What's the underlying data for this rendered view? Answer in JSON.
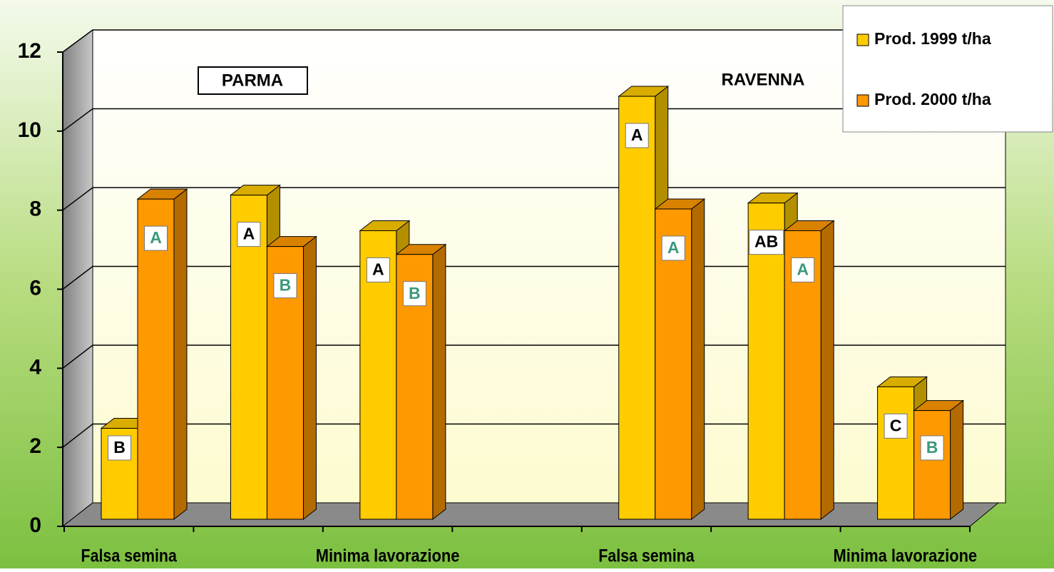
{
  "chart_data": {
    "type": "bar3d",
    "categories": [
      "Falsa semina",
      null,
      "Minima lavorazione",
      null,
      "Falsa semina",
      null,
      "Minima lavorazione"
    ],
    "series": [
      {
        "name": "Prod. 1999 t/ha",
        "color": "#ffcc00",
        "values": [
          2.3,
          8.2,
          7.3,
          null,
          10.7,
          8.0,
          3.35
        ],
        "letters": [
          "B",
          "A",
          "A",
          null,
          "A",
          "AB",
          "C"
        ],
        "letter_color": "#000000"
      },
      {
        "name": "Prod. 2000 t/ha",
        "color": "#ff9900",
        "values": [
          8.1,
          6.9,
          6.7,
          null,
          7.85,
          7.3,
          2.75
        ],
        "letters": [
          "A",
          "B",
          "B",
          null,
          "A",
          "A",
          "B"
        ],
        "letter_color": "#3a9a7a"
      }
    ],
    "annotations": [
      "PARMA",
      "RAVENNA"
    ],
    "ylim": [
      0,
      12
    ],
    "yticks": [
      0,
      2,
      4,
      6,
      8,
      10,
      12
    ],
    "grid": true,
    "legend": "top-right"
  }
}
